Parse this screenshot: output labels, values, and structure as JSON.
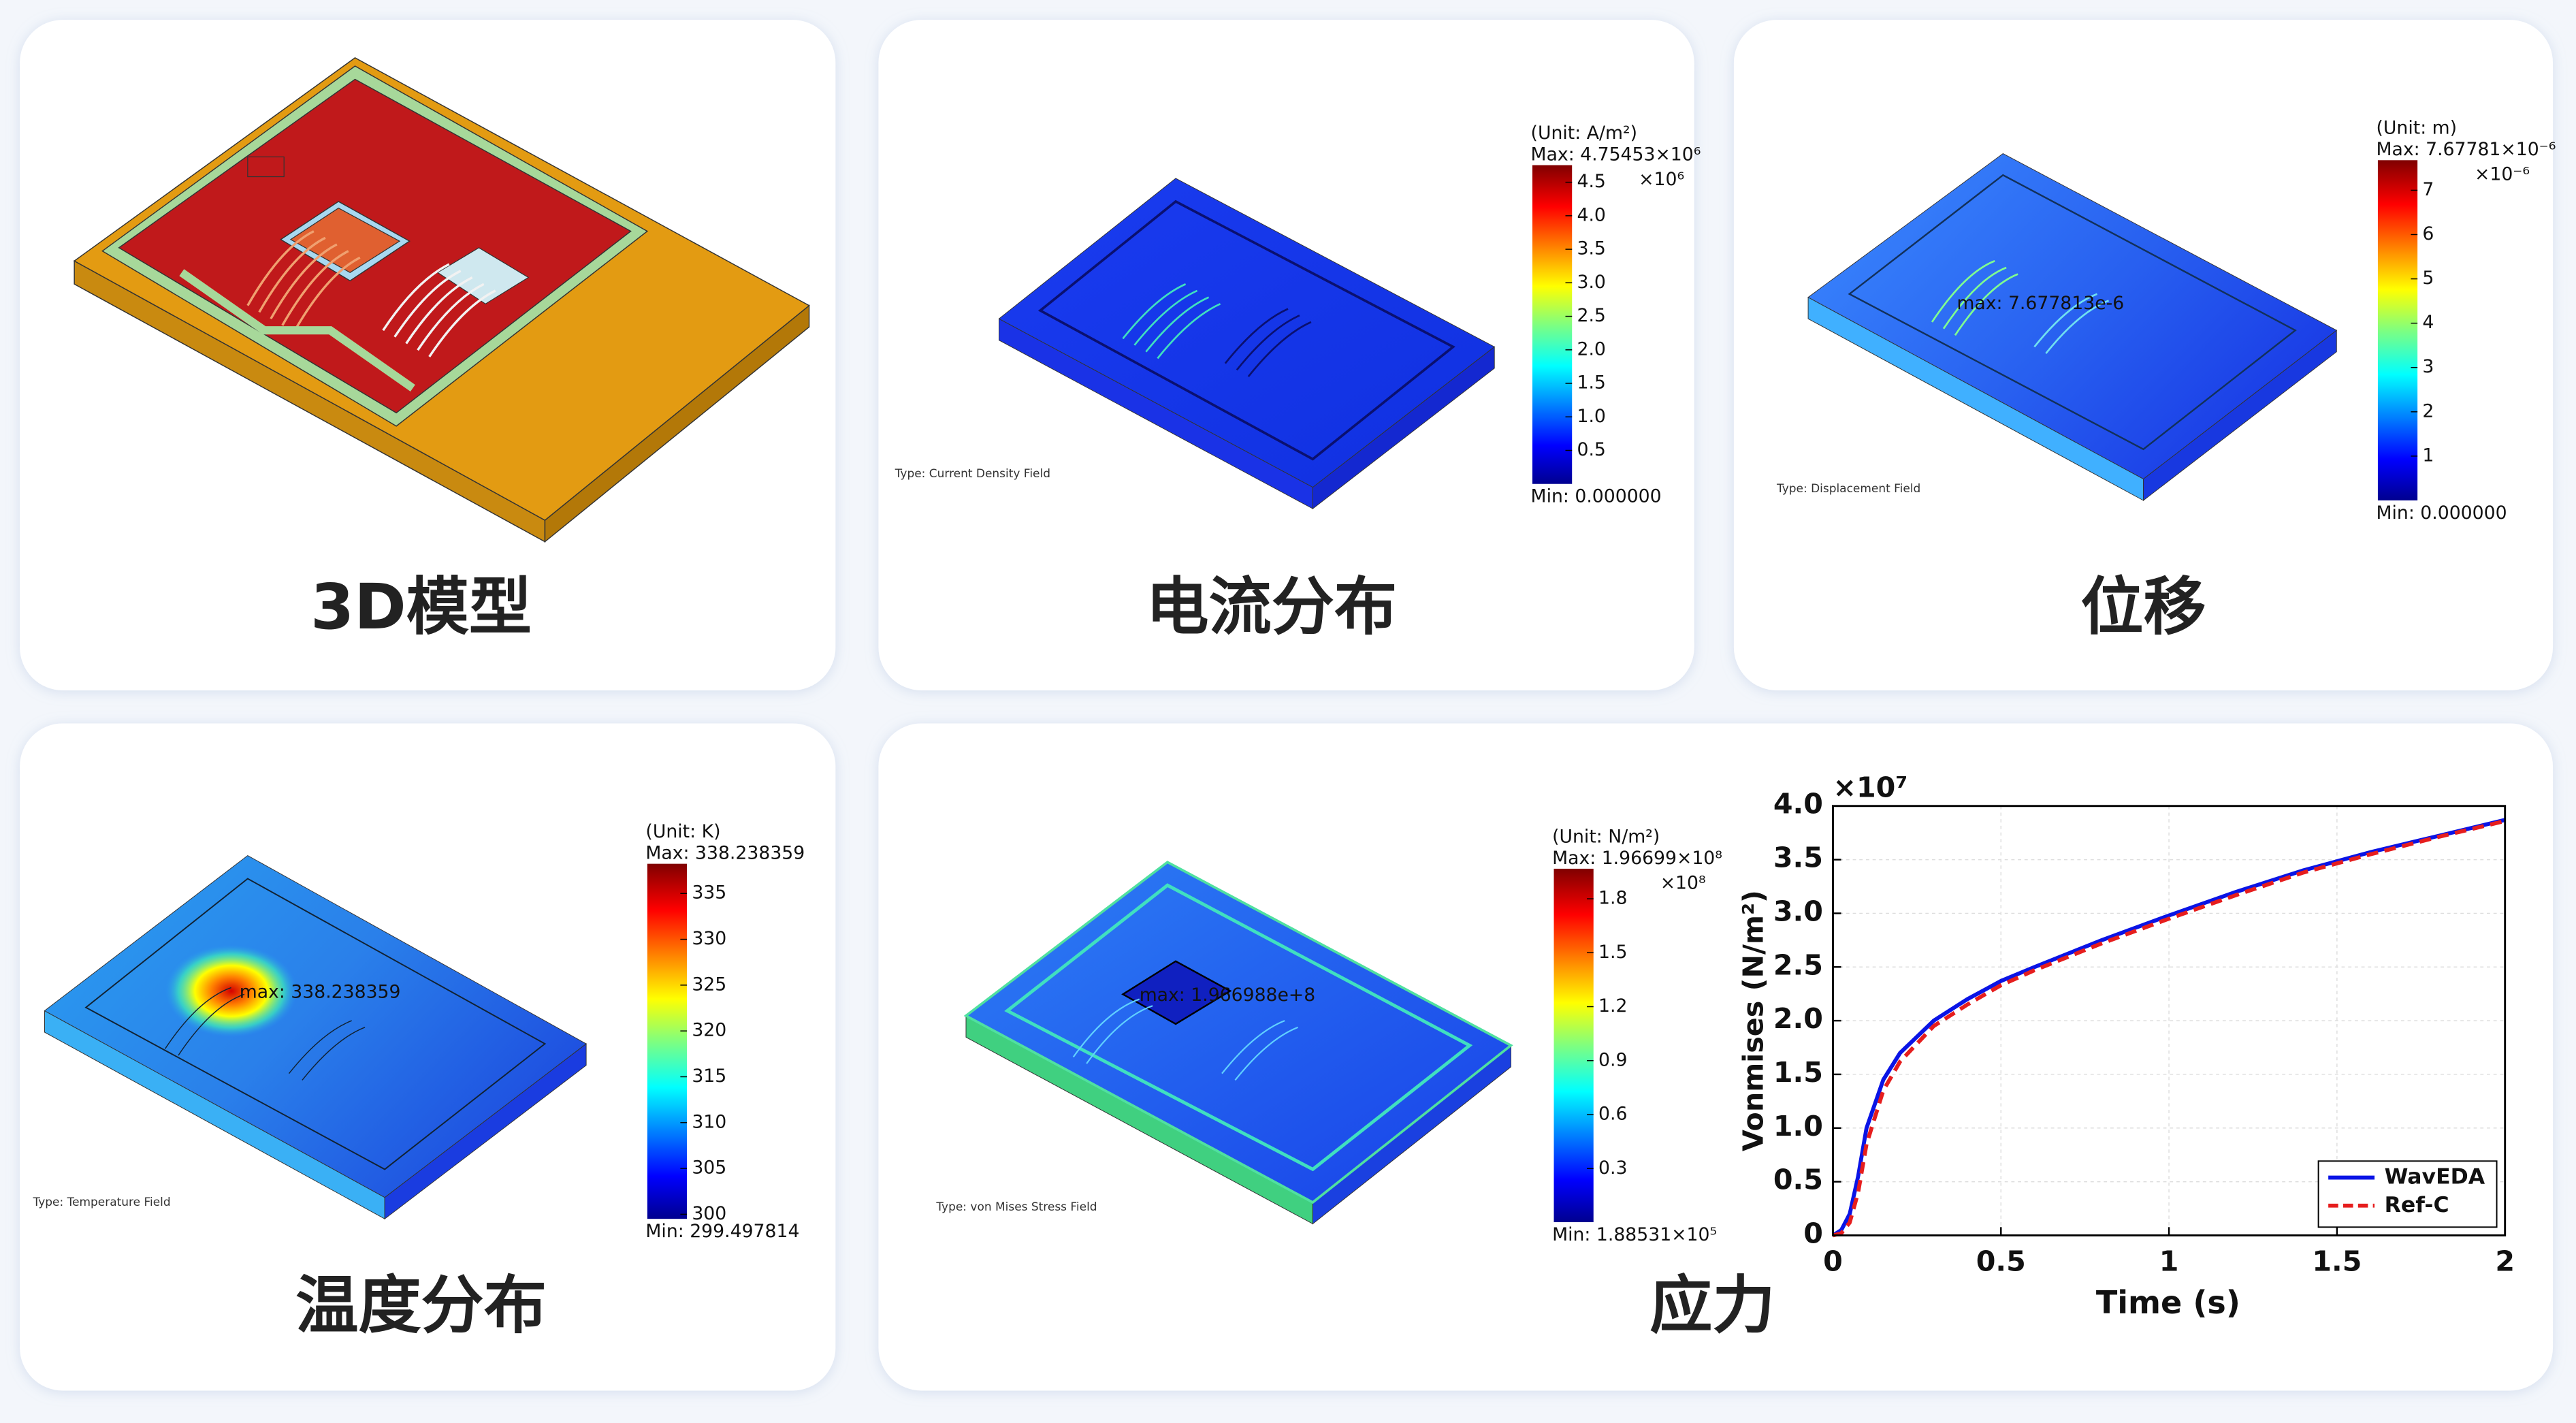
{
  "panels": [
    {
      "label": "3D模型"
    },
    {
      "label": "电流分布",
      "type_text": "Type: Current Density Field",
      "colorbar": {
        "unit": "(Unit: A/m²)",
        "max": "Max: 4.75453×10⁶",
        "multiplier": "×10⁶",
        "min": "Min: 0.000000",
        "lim": [
          0,
          4.75453
        ],
        "ticks": [
          4.5,
          {
            "value": 4,
            "label": "4.0"
          },
          3.5,
          {
            "value": 3,
            "label": "3.0"
          },
          2.5,
          {
            "value": 2,
            "label": "2.0"
          },
          1.5,
          {
            "value": 1,
            "label": "1.0"
          },
          0.5
        ]
      }
    },
    {
      "label": "位移",
      "type_text": "Type: Displacement Field",
      "annotation": "max: 7.677813e-6",
      "colorbar": {
        "unit": "(Unit: m)",
        "max": "Max: 7.67781×10⁻⁶",
        "multiplier": "×10⁻⁶",
        "min": "Min: 0.000000",
        "lim": [
          0,
          7.67781
        ],
        "ticks": [
          7,
          6,
          5,
          4,
          3,
          2,
          1
        ]
      }
    },
    {
      "label": "温度分布",
      "type_text": "Type: Temperature Field",
      "annotation": "max: 338.238359",
      "colorbar": {
        "unit": "(Unit: K)",
        "max": "Max: 338.238359",
        "min": "Min: 299.497814",
        "lim": [
          299.497814,
          338.238359
        ],
        "ticks": [
          335,
          330,
          325,
          320,
          315,
          310,
          305,
          300
        ]
      }
    },
    {
      "label": "应力",
      "type_text": "Type: von Mises Stress Field",
      "annotation": "max: 1.966988e+8",
      "colorbar": {
        "unit": "(Unit: N/m²)",
        "max": "Max: 1.96699×10⁸",
        "multiplier": "×10⁸",
        "min": "Min: 1.88531×10⁵",
        "lim": [
          0.00188531,
          1.96699
        ],
        "ticks": [
          1.8,
          1.5,
          1.2,
          0.9,
          0.6,
          0.3
        ]
      }
    }
  ],
  "chart_data": {
    "type": "line",
    "x_label": "Time (s)",
    "y_label": "Vonmises (N/m²)",
    "y_offset_label": "×10⁷",
    "x": [
      0,
      0.025,
      0.05,
      0.075,
      0.1,
      0.15,
      0.2,
      0.3,
      0.4,
      0.5,
      0.6,
      0.8,
      1.0,
      1.2,
      1.4,
      1.6,
      1.8,
      2.0
    ],
    "series": [
      {
        "name": "WavEDA",
        "color": "#0a14e6",
        "dash": false,
        "values": [
          0,
          0.05,
          0.2,
          0.55,
          1.0,
          1.45,
          1.7,
          2.0,
          2.2,
          2.37,
          2.5,
          2.75,
          2.98,
          3.2,
          3.4,
          3.57,
          3.72,
          3.87
        ]
      },
      {
        "name": "Ref-C",
        "color": "#e61e1e",
        "dash": true,
        "values": [
          0,
          0.02,
          0.12,
          0.4,
          0.85,
          1.35,
          1.62,
          1.95,
          2.15,
          2.33,
          2.47,
          2.72,
          2.95,
          3.17,
          3.38,
          3.55,
          3.71,
          3.86
        ]
      }
    ],
    "xlim": [
      0,
      2
    ],
    "xticks": [
      0,
      0.5,
      1,
      1.5,
      2
    ],
    "ylim": [
      0,
      4
    ],
    "yticks": [
      0,
      0.5,
      {
        "value": 1,
        "label": "1.0"
      },
      1.5,
      {
        "value": 2,
        "label": "2.0"
      },
      2.5,
      {
        "value": 3,
        "label": "3.0"
      },
      3.5,
      {
        "value": 4,
        "label": "4.0"
      }
    ],
    "grid": true,
    "legend": "lower right"
  }
}
